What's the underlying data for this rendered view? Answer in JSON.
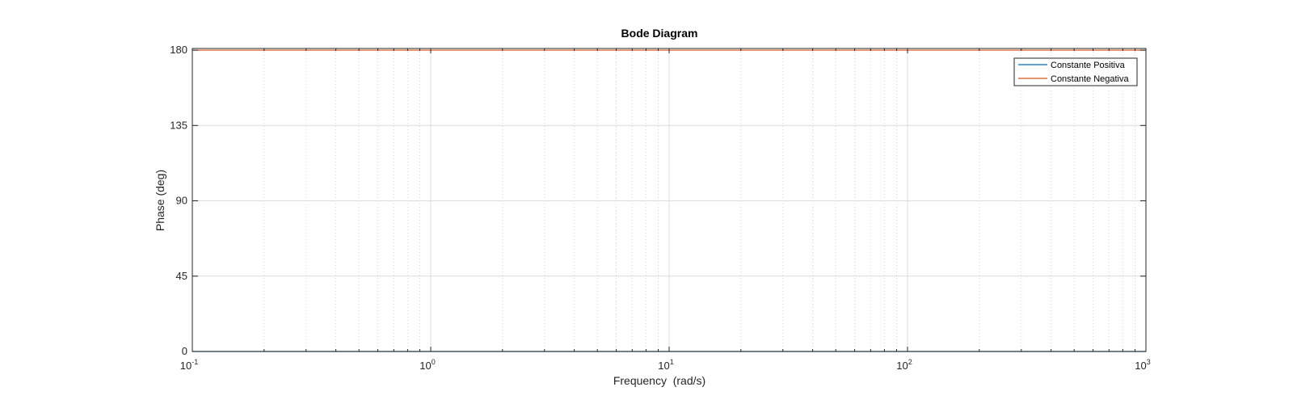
{
  "chart_data": {
    "type": "line",
    "title": "Bode Diagram",
    "xlabel": "Frequency  (rad/s)",
    "ylabel": "Phase (deg)",
    "xscale": "log",
    "xlim": [
      0.1,
      1000
    ],
    "ylim": [
      0,
      181
    ],
    "xticks": [
      {
        "base": "10",
        "exp": "-1",
        "value": 0.1
      },
      {
        "base": "10",
        "exp": "0",
        "value": 1
      },
      {
        "base": "10",
        "exp": "1",
        "value": 10
      },
      {
        "base": "10",
        "exp": "2",
        "value": 100
      },
      {
        "base": "10",
        "exp": "3",
        "value": 1000
      }
    ],
    "yticks": [
      "0",
      "45",
      "90",
      "135",
      "180"
    ],
    "grid": true,
    "legend_position": "top-right",
    "series": [
      {
        "name": "Constante Positiva",
        "color": "#0072BD",
        "x": [
          0.1,
          1000
        ],
        "y": [
          0,
          0
        ]
      },
      {
        "name": "Constante Negativa",
        "color": "#D95319",
        "x": [
          0.1,
          1000
        ],
        "y": [
          180,
          180
        ]
      }
    ]
  }
}
